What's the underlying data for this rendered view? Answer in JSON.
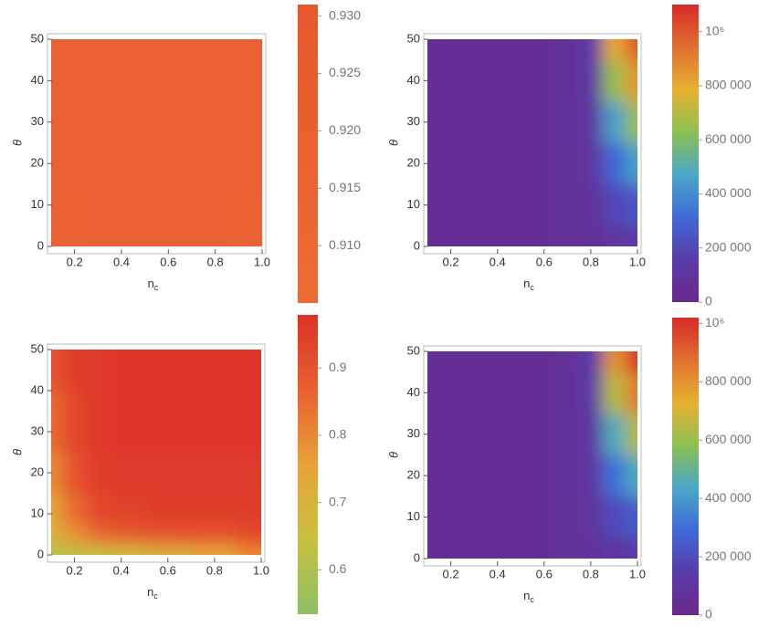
{
  "chart_data": [
    {
      "type": "heatmap",
      "x_label": "n",
      "x_label_sub": "c",
      "y_label": "θ",
      "xlim": [
        0.1,
        1.0
      ],
      "ylim": [
        0,
        50
      ],
      "xticks": [
        0.2,
        0.4,
        0.6,
        0.8,
        {
          "value": 1,
          "label": "1.0"
        }
      ],
      "yticks": [
        0,
        10,
        20,
        30,
        40,
        50
      ],
      "x": [
        0.1,
        0.4,
        0.7,
        1.0
      ],
      "y": [
        0,
        25,
        50
      ],
      "z": [
        [
          0.918,
          0.919,
          0.921,
          0.918
        ],
        [
          0.92,
          0.921,
          0.921,
          0.92
        ],
        [
          0.921,
          0.921,
          0.921,
          0.921
        ]
      ],
      "colormap": [
        "#ed6c34",
        "#e6582d"
      ],
      "clim": [
        0.905,
        0.931
      ],
      "cticks": [
        {
          "value": 0.91,
          "label": "0.910"
        },
        0.915,
        {
          "value": 0.92,
          "label": "0.920"
        },
        0.925,
        {
          "value": 0.93,
          "label": "0.930"
        }
      ]
    },
    {
      "type": "heatmap",
      "x_label": "n",
      "x_label_sub": "c",
      "y_label": "θ",
      "xlim": [
        0.1,
        1.0
      ],
      "ylim": [
        0,
        50
      ],
      "xticks": [
        0.2,
        0.4,
        0.6,
        0.8,
        {
          "value": 1,
          "label": "1.0"
        }
      ],
      "yticks": [
        0,
        10,
        20,
        30,
        40,
        50
      ],
      "x": [
        0.1,
        0.25,
        0.4,
        0.55,
        0.7,
        0.8,
        0.9,
        1.0
      ],
      "y": [
        0,
        10,
        20,
        30,
        40,
        50
      ],
      "z": [
        [
          50000,
          50000,
          50000,
          50000,
          60000,
          80000,
          100000,
          150000
        ],
        [
          50000,
          50000,
          50000,
          50000,
          60000,
          90000,
          200000,
          250000
        ],
        [
          50000,
          50000,
          50000,
          50000,
          60000,
          100000,
          300000,
          450000
        ],
        [
          50000,
          50000,
          50000,
          50000,
          60000,
          110000,
          450000,
          650000
        ],
        [
          50000,
          50000,
          50000,
          50000,
          60000,
          130000,
          650000,
          850000
        ],
        [
          50000,
          50000,
          50000,
          50000,
          60000,
          150000,
          800000,
          1000000
        ]
      ],
      "colormap": [
        "#6a2a8c",
        "#5a3aa8",
        "#3f6ad8",
        "#4aa8c8",
        "#8cc050",
        "#e8b030",
        "#e07030",
        "#d82a28"
      ],
      "clim": [
        0,
        1100000
      ],
      "cticks": [
        0,
        {
          "value": 200000,
          "label": "200 000"
        },
        {
          "value": 400000,
          "label": "400 000"
        },
        {
          "value": 600000,
          "label": "600 000"
        },
        {
          "value": 800000,
          "label": "800 000"
        },
        {
          "value": 1000000,
          "label": "10⁶"
        }
      ]
    },
    {
      "type": "heatmap",
      "x_label": "n",
      "x_label_sub": "c",
      "y_label": "θ",
      "xlim": [
        0.1,
        1.0
      ],
      "ylim": [
        0,
        50
      ],
      "xticks": [
        0.2,
        0.4,
        0.6,
        0.8,
        {
          "value": 1,
          "label": "1.0"
        }
      ],
      "yticks": [
        0,
        10,
        20,
        30,
        40,
        50
      ],
      "x": [
        0.1,
        0.2,
        0.3,
        0.4,
        0.6,
        0.8,
        1.0
      ],
      "y": [
        0,
        5,
        10,
        20,
        30,
        50
      ],
      "z": [
        [
          0.6,
          0.62,
          0.64,
          0.66,
          0.7,
          0.75,
          0.8
        ],
        [
          0.7,
          0.78,
          0.85,
          0.88,
          0.9,
          0.9,
          0.92
        ],
        [
          0.75,
          0.85,
          0.92,
          0.94,
          0.95,
          0.95,
          0.95
        ],
        [
          0.8,
          0.9,
          0.95,
          0.96,
          0.96,
          0.96,
          0.96
        ],
        [
          0.85,
          0.93,
          0.96,
          0.97,
          0.97,
          0.97,
          0.97
        ],
        [
          0.9,
          0.95,
          0.96,
          0.97,
          0.97,
          0.97,
          0.97
        ]
      ],
      "colormap": [
        "#8cc063",
        "#c8c040",
        "#e8a238",
        "#e86030",
        "#dc3228"
      ],
      "clim": [
        0.534,
        0.979
      ],
      "cticks": [
        0.6,
        0.7,
        0.8,
        0.9
      ]
    },
    {
      "type": "heatmap",
      "x_label": "n",
      "x_label_sub": "c",
      "y_label": "θ",
      "xlim": [
        0.1,
        1.0
      ],
      "ylim": [
        0,
        50
      ],
      "xticks": [
        0.2,
        0.4,
        0.6,
        0.8,
        {
          "value": 1,
          "label": "1.0"
        }
      ],
      "yticks": [
        0,
        10,
        20,
        30,
        40,
        50
      ],
      "x": [
        0.1,
        0.25,
        0.4,
        0.55,
        0.7,
        0.8,
        0.9,
        1.0
      ],
      "y": [
        0,
        10,
        20,
        30,
        40,
        50
      ],
      "z": [
        [
          50000,
          50000,
          50000,
          50000,
          60000,
          80000,
          100000,
          150000
        ],
        [
          50000,
          50000,
          50000,
          50000,
          60000,
          90000,
          200000,
          250000
        ],
        [
          50000,
          50000,
          50000,
          50000,
          60000,
          100000,
          300000,
          450000
        ],
        [
          50000,
          50000,
          50000,
          50000,
          60000,
          110000,
          450000,
          650000
        ],
        [
          50000,
          50000,
          50000,
          50000,
          60000,
          130000,
          650000,
          850000
        ],
        [
          50000,
          50000,
          50000,
          50000,
          60000,
          150000,
          800000,
          1000000
        ]
      ],
      "colormap": [
        "#6a2a8c",
        "#5a3aa8",
        "#3f6ad8",
        "#4aa8c8",
        "#8cc050",
        "#e8b030",
        "#e07030",
        "#d82a28"
      ],
      "clim": [
        0,
        1020000
      ],
      "cticks": [
        0,
        {
          "value": 200000,
          "label": "200 000"
        },
        {
          "value": 400000,
          "label": "400 000"
        },
        {
          "value": 600000,
          "label": "600 000"
        },
        {
          "value": 800000,
          "label": "800 000"
        },
        {
          "value": 1000000,
          "label": "10⁶"
        }
      ]
    }
  ]
}
